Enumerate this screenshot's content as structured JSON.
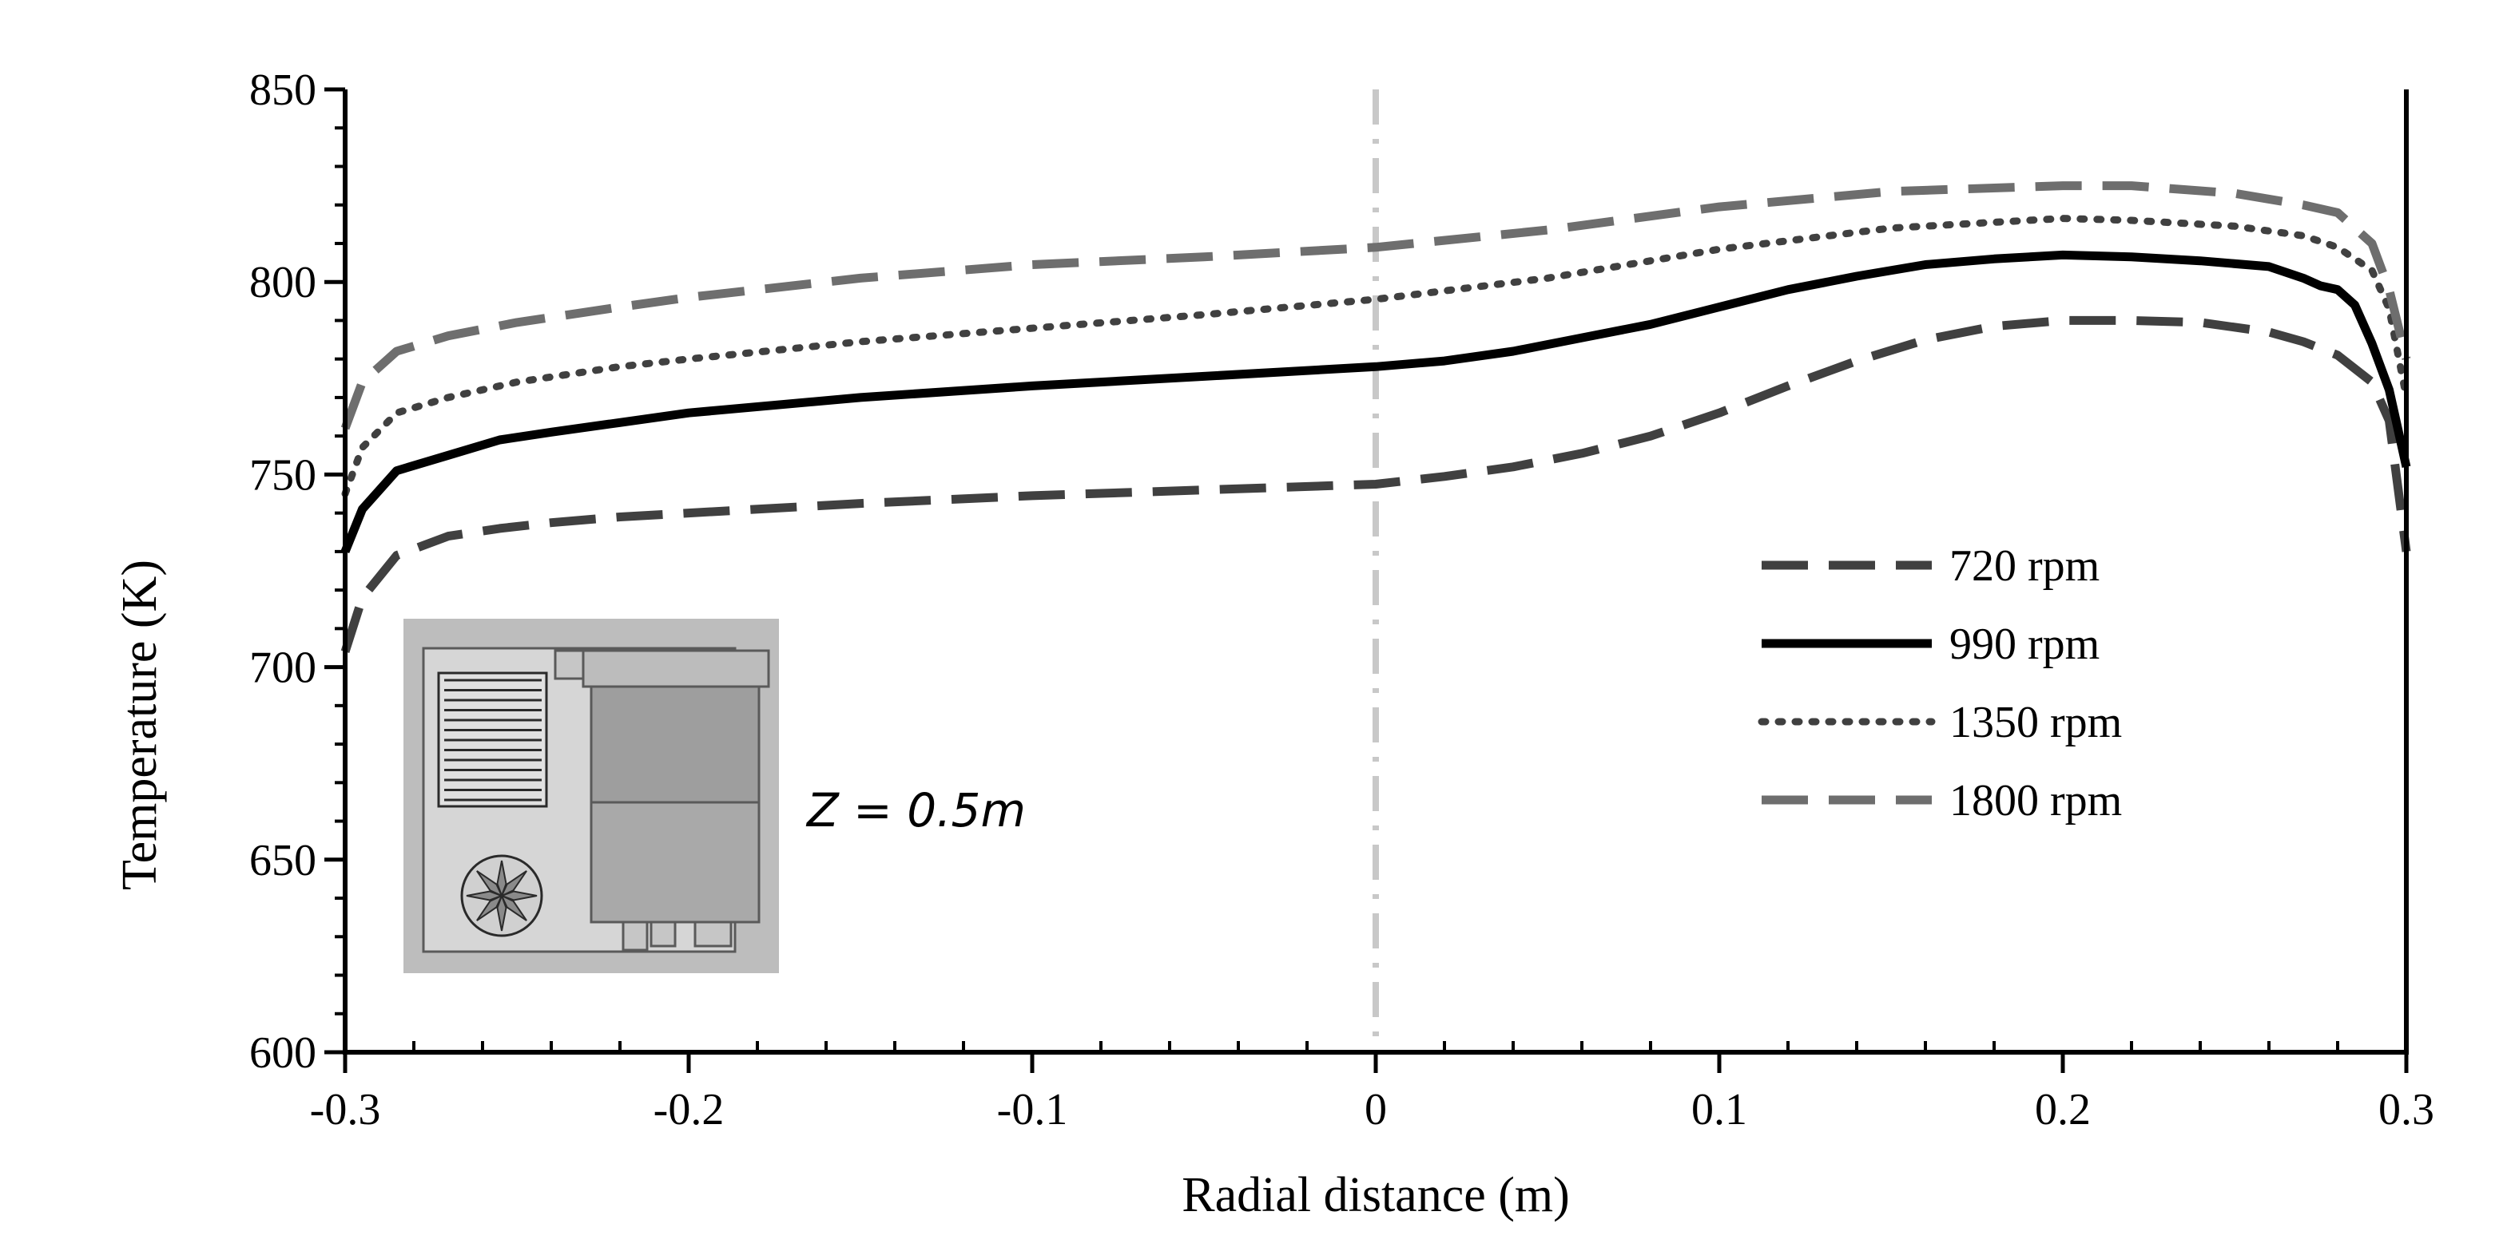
{
  "chart_data": {
    "type": "line",
    "title": "",
    "xlabel": "Radial distance (m)",
    "ylabel": "Temperature (K)",
    "xlim": [
      -0.3,
      0.3
    ],
    "ylim": [
      600,
      850
    ],
    "xticks": [
      -0.3,
      -0.2,
      -0.1,
      0,
      0.1,
      0.2,
      0.3
    ],
    "xtick_labels": [
      "-0.3",
      "-0.2",
      "-0.1",
      "0",
      "0.1",
      "0.2",
      "0.3"
    ],
    "yticks": [
      600,
      650,
      700,
      750,
      800,
      850
    ],
    "ytick_labels": [
      "600",
      "650",
      "700",
      "750",
      "800",
      "850"
    ],
    "grid": false,
    "legend_position": "right",
    "annotation": "Z = 0.5m",
    "center_line_x": 0,
    "series": [
      {
        "name": "720 rpm",
        "style": "dashed",
        "color": "#404040",
        "x": [
          -0.3,
          -0.295,
          -0.285,
          -0.27,
          -0.255,
          -0.24,
          -0.22,
          -0.2,
          -0.15,
          -0.1,
          -0.05,
          0,
          0.02,
          0.04,
          0.06,
          0.08,
          0.1,
          0.12,
          0.14,
          0.16,
          0.18,
          0.2,
          0.22,
          0.24,
          0.26,
          0.27,
          0.28,
          0.29,
          0.295,
          0.3
        ],
        "values": [
          704,
          718,
          729,
          734,
          736,
          737.5,
          739,
          740,
          742.5,
          744.5,
          746,
          747.5,
          749.5,
          752,
          755.5,
          760,
          766,
          773,
          779.5,
          785,
          788.5,
          790,
          790,
          789.5,
          787,
          784.5,
          781,
          774,
          764,
          730
        ]
      },
      {
        "name": "990 rpm",
        "style": "solid",
        "color": "#000000",
        "x": [
          -0.3,
          -0.295,
          -0.285,
          -0.27,
          -0.255,
          -0.24,
          -0.22,
          -0.2,
          -0.15,
          -0.1,
          -0.05,
          0,
          0.02,
          0.04,
          0.06,
          0.08,
          0.1,
          0.12,
          0.14,
          0.16,
          0.18,
          0.2,
          0.22,
          0.24,
          0.26,
          0.27,
          0.275,
          0.28,
          0.285,
          0.29,
          0.295,
          0.3
        ],
        "values": [
          730,
          741,
          751,
          755,
          759,
          761,
          763.5,
          766,
          770,
          773,
          775.5,
          778,
          779.5,
          782,
          785.5,
          789,
          793.5,
          798,
          801.5,
          804.5,
          806,
          807,
          806.5,
          805.5,
          804,
          801,
          799,
          798,
          794,
          784,
          772,
          752
        ]
      },
      {
        "name": "1350 rpm",
        "style": "dotted",
        "color": "#404040",
        "x": [
          -0.3,
          -0.295,
          -0.285,
          -0.27,
          -0.25,
          -0.22,
          -0.2,
          -0.15,
          -0.1,
          -0.05,
          0,
          0.05,
          0.1,
          0.15,
          0.2,
          0.22,
          0.25,
          0.27,
          0.28,
          0.29,
          0.295,
          0.3
        ],
        "values": [
          745,
          757,
          766,
          770,
          774,
          778,
          780,
          784.5,
          788,
          791.5,
          795.5,
          801,
          808.5,
          814,
          816.5,
          816,
          814.5,
          812,
          809,
          803,
          793,
          770
        ]
      },
      {
        "name": "1800 rpm",
        "style": "dashed",
        "color": "#6e6e6e",
        "x": [
          -0.3,
          -0.295,
          -0.285,
          -0.27,
          -0.25,
          -0.22,
          -0.2,
          -0.15,
          -0.1,
          -0.05,
          0,
          0.05,
          0.1,
          0.15,
          0.2,
          0.22,
          0.25,
          0.27,
          0.28,
          0.29,
          0.295,
          0.3
        ],
        "values": [
          762,
          774,
          782,
          786,
          789.5,
          793.5,
          796,
          801,
          804.5,
          806.5,
          809,
          813.5,
          819.5,
          823.5,
          825,
          825,
          823,
          820,
          818,
          810,
          798,
          780
        ]
      }
    ]
  }
}
